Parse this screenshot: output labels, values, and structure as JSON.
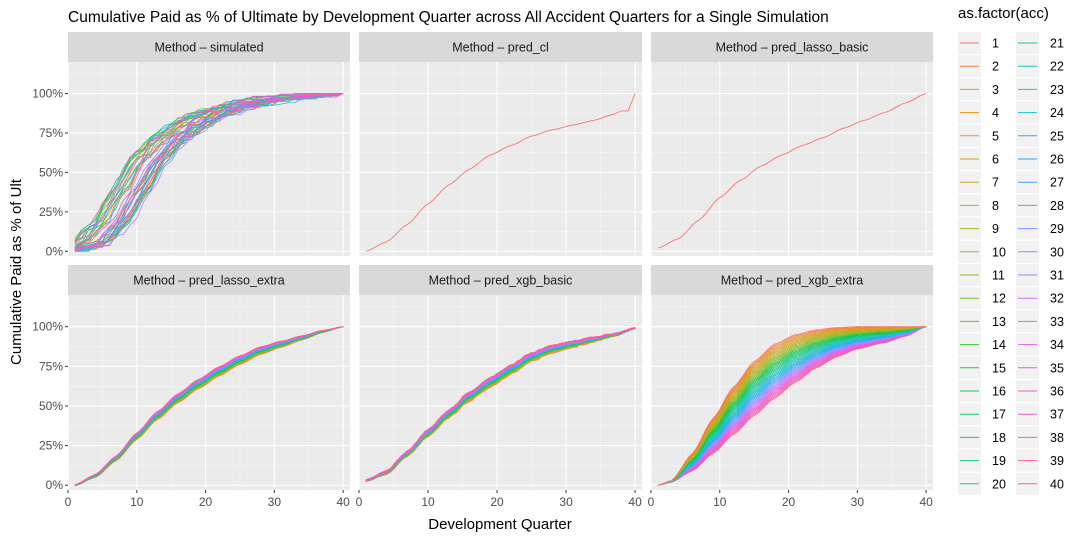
{
  "chart_data": {
    "type": "line",
    "title": "Cumulative Paid as % of Ultimate by Development Quarter across All Accident Quarters for a Single Simulation",
    "xlabel": "Development Quarter",
    "ylabel": "Cumulative Paid as % of Ult",
    "xlim": [
      0,
      41
    ],
    "ylim": [
      -0.03,
      1.2
    ],
    "x_ticks": [
      0,
      10,
      20,
      30,
      40
    ],
    "y_ticks": [
      0,
      0.25,
      0.5,
      0.75,
      1.0
    ],
    "y_tick_labels": [
      "0%",
      "25%",
      "50%",
      "75%",
      "100%"
    ],
    "grid": true,
    "legend": {
      "title": "as.factor(acc)",
      "placement": "right",
      "entries": [
        "1",
        "2",
        "3",
        "4",
        "5",
        "6",
        "7",
        "8",
        "9",
        "10",
        "11",
        "12",
        "13",
        "14",
        "15",
        "16",
        "17",
        "18",
        "19",
        "20",
        "21",
        "22",
        "23",
        "24",
        "25",
        "26",
        "27",
        "28",
        "29",
        "30",
        "31",
        "32",
        "33",
        "34",
        "35",
        "36",
        "37",
        "38",
        "39",
        "40"
      ],
      "colors": [
        "#F8766D",
        "#F47F48",
        "#EF8A2C",
        "#E7921E",
        "#DD9A1A",
        "#D3A11A",
        "#C8A71B",
        "#BCAC1E",
        "#AEB21F",
        "#9FB622",
        "#8EBA26",
        "#7ABE2B",
        "#5FC232",
        "#3AC53C",
        "#1AC74A",
        "#0FC95A",
        "#12C96A",
        "#16C97A",
        "#19C88A",
        "#1CC79B",
        "#1FC5AB",
        "#21C2BA",
        "#22BFC8",
        "#22BBD5",
        "#20B6E1",
        "#1DB1EC",
        "#36A9F5",
        "#5AA0FB",
        "#7896FE",
        "#928BFF",
        "#A980FF",
        "#BD75FB",
        "#CE6BF4",
        "#DC63EA",
        "#E75DDE",
        "#EF5AD0",
        "#F559C0",
        "#F85AB0",
        "#F95C9F",
        "#F8658F"
      ]
    },
    "panels": [
      {
        "strip": "Method – simulated",
        "series_type": "simulated",
        "anchors": [
          [
            1,
            0.01
          ],
          [
            3,
            0.04
          ],
          [
            6,
            0.16
          ],
          [
            9,
            0.38
          ],
          [
            12,
            0.59
          ],
          [
            15,
            0.72
          ],
          [
            18,
            0.81
          ],
          [
            21,
            0.87
          ],
          [
            24,
            0.91
          ],
          [
            27,
            0.94
          ],
          [
            30,
            0.96
          ],
          [
            34,
            0.975
          ],
          [
            38,
            0.985
          ],
          [
            40,
            1.0
          ]
        ]
      },
      {
        "strip": "Method – pred_cl",
        "series_type": "single",
        "anchors": [
          [
            1,
            0.0
          ],
          [
            4,
            0.06
          ],
          [
            7,
            0.17
          ],
          [
            10,
            0.3
          ],
          [
            13,
            0.42
          ],
          [
            16,
            0.52
          ],
          [
            19,
            0.61
          ],
          [
            22,
            0.67
          ],
          [
            25,
            0.73
          ],
          [
            28,
            0.77
          ],
          [
            31,
            0.8
          ],
          [
            34,
            0.83
          ],
          [
            37,
            0.87
          ],
          [
            38,
            0.89
          ],
          [
            39,
            0.89
          ],
          [
            40,
            1.0
          ]
        ]
      },
      {
        "strip": "Method – pred_lasso_basic",
        "series_type": "single",
        "anchors": [
          [
            1,
            0.02
          ],
          [
            4,
            0.08
          ],
          [
            7,
            0.2
          ],
          [
            10,
            0.34
          ],
          [
            13,
            0.45
          ],
          [
            16,
            0.54
          ],
          [
            19,
            0.61
          ],
          [
            22,
            0.67
          ],
          [
            25,
            0.72
          ],
          [
            28,
            0.78
          ],
          [
            31,
            0.83
          ],
          [
            34,
            0.88
          ],
          [
            37,
            0.94
          ],
          [
            40,
            1.0
          ]
        ]
      },
      {
        "strip": "Method – pred_lasso_extra",
        "series_type": "tight",
        "anchors": [
          [
            1,
            0.0
          ],
          [
            4,
            0.06
          ],
          [
            7,
            0.17
          ],
          [
            10,
            0.31
          ],
          [
            13,
            0.44
          ],
          [
            16,
            0.55
          ],
          [
            19,
            0.64
          ],
          [
            22,
            0.72
          ],
          [
            25,
            0.79
          ],
          [
            28,
            0.85
          ],
          [
            31,
            0.89
          ],
          [
            34,
            0.93
          ],
          [
            37,
            0.97
          ],
          [
            40,
            1.0
          ]
        ]
      },
      {
        "strip": "Method – pred_xgb_basic",
        "series_type": "tight_noisy",
        "anchors": [
          [
            1,
            0.03
          ],
          [
            4,
            0.08
          ],
          [
            7,
            0.2
          ],
          [
            10,
            0.33
          ],
          [
            13,
            0.45
          ],
          [
            16,
            0.56
          ],
          [
            19,
            0.65
          ],
          [
            22,
            0.73
          ],
          [
            25,
            0.81
          ],
          [
            28,
            0.86
          ],
          [
            31,
            0.89
          ],
          [
            34,
            0.92
          ],
          [
            37,
            0.95
          ],
          [
            40,
            0.99
          ]
        ]
      },
      {
        "strip": "Method – pred_xgb_extra",
        "series_type": "fan",
        "anchors_fast": [
          [
            1,
            0.0
          ],
          [
            3,
            0.03
          ],
          [
            6,
            0.2
          ],
          [
            9,
            0.42
          ],
          [
            12,
            0.62
          ],
          [
            15,
            0.78
          ],
          [
            18,
            0.89
          ],
          [
            21,
            0.95
          ],
          [
            24,
            0.98
          ],
          [
            27,
            0.995
          ],
          [
            30,
            1.0
          ],
          [
            40,
            1.0
          ]
        ],
        "anchors_slow": [
          [
            1,
            0.0
          ],
          [
            3,
            0.02
          ],
          [
            6,
            0.09
          ],
          [
            9,
            0.2
          ],
          [
            12,
            0.32
          ],
          [
            15,
            0.44
          ],
          [
            18,
            0.55
          ],
          [
            21,
            0.65
          ],
          [
            24,
            0.74
          ],
          [
            27,
            0.81
          ],
          [
            30,
            0.86
          ],
          [
            34,
            0.9
          ],
          [
            37,
            0.94
          ],
          [
            40,
            1.0
          ]
        ]
      }
    ]
  }
}
